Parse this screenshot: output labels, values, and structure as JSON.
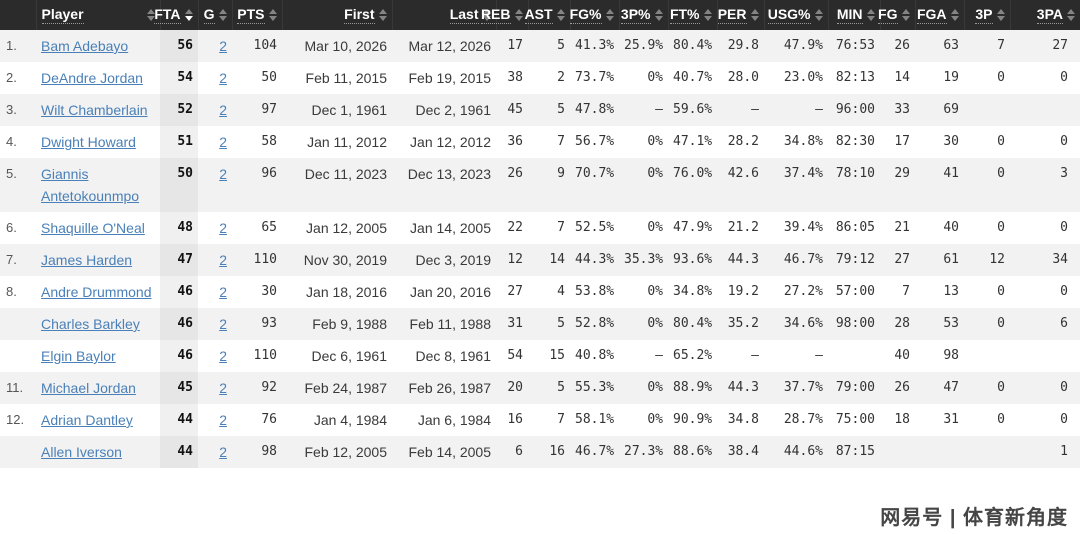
{
  "columns": [
    {
      "key": "rank",
      "label": "",
      "sortable": false
    },
    {
      "key": "player",
      "label": "Player",
      "sortable": true
    },
    {
      "key": "fta",
      "label": "FTA",
      "sortable": true,
      "sorted": "desc"
    },
    {
      "key": "g",
      "label": "G",
      "sortable": true
    },
    {
      "key": "pts",
      "label": "PTS",
      "sortable": true
    },
    {
      "key": "first",
      "label": "First",
      "sortable": true
    },
    {
      "key": "last",
      "label": "Last",
      "sortable": true
    },
    {
      "key": "reb",
      "label": "REB",
      "sortable": true
    },
    {
      "key": "ast",
      "label": "AST",
      "sortable": true
    },
    {
      "key": "fg_pct",
      "label": "FG%",
      "sortable": true
    },
    {
      "key": "p3_pct",
      "label": "3P%",
      "sortable": true
    },
    {
      "key": "ft_pct",
      "label": "FT%",
      "sortable": true
    },
    {
      "key": "per",
      "label": "PER",
      "sortable": true
    },
    {
      "key": "usg_pct",
      "label": "USG%",
      "sortable": true
    },
    {
      "key": "min",
      "label": "MIN",
      "sortable": true
    },
    {
      "key": "fg",
      "label": "FG",
      "sortable": true
    },
    {
      "key": "fga",
      "label": "FGA",
      "sortable": true
    },
    {
      "key": "p3",
      "label": "3P",
      "sortable": true
    },
    {
      "key": "p3a",
      "label": "3PA",
      "sortable": true
    }
  ],
  "rows": [
    {
      "rank": "1.",
      "player": "Bam Adebayo",
      "fta": "56",
      "g": "2",
      "pts": "104",
      "first": "Mar 10, 2026",
      "last": "Mar 12, 2026",
      "reb": "17",
      "ast": "5",
      "fg_pct": "41.3%",
      "p3_pct": "25.9%",
      "ft_pct": "80.4%",
      "per": "29.8",
      "usg_pct": "47.9%",
      "min": "76:53",
      "fg": "26",
      "fga": "63",
      "p3": "7",
      "p3a": "27"
    },
    {
      "rank": "2.",
      "player": "DeAndre Jordan",
      "fta": "54",
      "g": "2",
      "pts": "50",
      "first": "Feb 11, 2015",
      "last": "Feb 19, 2015",
      "reb": "38",
      "ast": "2",
      "fg_pct": "73.7%",
      "p3_pct": "0%",
      "ft_pct": "40.7%",
      "per": "28.0",
      "usg_pct": "23.0%",
      "min": "82:13",
      "fg": "14",
      "fga": "19",
      "p3": "0",
      "p3a": "0"
    },
    {
      "rank": "3.",
      "player": "Wilt Chamberlain",
      "fta": "52",
      "g": "2",
      "pts": "97",
      "first": "Dec 1, 1961",
      "last": "Dec 2, 1961",
      "reb": "45",
      "ast": "5",
      "fg_pct": "47.8%",
      "p3_pct": "–",
      "ft_pct": "59.6%",
      "per": "–",
      "usg_pct": "–",
      "min": "96:00",
      "fg": "33",
      "fga": "69",
      "p3": "",
      "p3a": ""
    },
    {
      "rank": "4.",
      "player": "Dwight Howard",
      "fta": "51",
      "g": "2",
      "pts": "58",
      "first": "Jan 11, 2012",
      "last": "Jan 12, 2012",
      "reb": "36",
      "ast": "7",
      "fg_pct": "56.7%",
      "p3_pct": "0%",
      "ft_pct": "47.1%",
      "per": "28.2",
      "usg_pct": "34.8%",
      "min": "82:30",
      "fg": "17",
      "fga": "30",
      "p3": "0",
      "p3a": "0"
    },
    {
      "rank": "5.",
      "player": "Giannis Antetokounmpo",
      "fta": "50",
      "g": "2",
      "pts": "96",
      "first": "Dec 11, 2023",
      "last": "Dec 13, 2023",
      "reb": "26",
      "ast": "9",
      "fg_pct": "70.7%",
      "p3_pct": "0%",
      "ft_pct": "76.0%",
      "per": "42.6",
      "usg_pct": "37.4%",
      "min": "78:10",
      "fg": "29",
      "fga": "41",
      "p3": "0",
      "p3a": "3"
    },
    {
      "rank": "6.",
      "player": "Shaquille O'Neal",
      "fta": "48",
      "g": "2",
      "pts": "65",
      "first": "Jan 12, 2005",
      "last": "Jan 14, 2005",
      "reb": "22",
      "ast": "7",
      "fg_pct": "52.5%",
      "p3_pct": "0%",
      "ft_pct": "47.9%",
      "per": "21.2",
      "usg_pct": "39.4%",
      "min": "86:05",
      "fg": "21",
      "fga": "40",
      "p3": "0",
      "p3a": "0"
    },
    {
      "rank": "7.",
      "player": "James Harden",
      "fta": "47",
      "g": "2",
      "pts": "110",
      "first": "Nov 30, 2019",
      "last": "Dec 3, 2019",
      "reb": "12",
      "ast": "14",
      "fg_pct": "44.3%",
      "p3_pct": "35.3%",
      "ft_pct": "93.6%",
      "per": "44.3",
      "usg_pct": "46.7%",
      "min": "79:12",
      "fg": "27",
      "fga": "61",
      "p3": "12",
      "p3a": "34"
    },
    {
      "rank": "8.",
      "player": "Andre Drummond",
      "fta": "46",
      "g": "2",
      "pts": "30",
      "first": "Jan 18, 2016",
      "last": "Jan 20, 2016",
      "reb": "27",
      "ast": "4",
      "fg_pct": "53.8%",
      "p3_pct": "0%",
      "ft_pct": "34.8%",
      "per": "19.2",
      "usg_pct": "27.2%",
      "min": "57:00",
      "fg": "7",
      "fga": "13",
      "p3": "0",
      "p3a": "0"
    },
    {
      "rank": "",
      "player": "Charles Barkley",
      "fta": "46",
      "g": "2",
      "pts": "93",
      "first": "Feb 9, 1988",
      "last": "Feb 11, 1988",
      "reb": "31",
      "ast": "5",
      "fg_pct": "52.8%",
      "p3_pct": "0%",
      "ft_pct": "80.4%",
      "per": "35.2",
      "usg_pct": "34.6%",
      "min": "98:00",
      "fg": "28",
      "fga": "53",
      "p3": "0",
      "p3a": "6"
    },
    {
      "rank": "",
      "player": "Elgin Baylor",
      "fta": "46",
      "g": "2",
      "pts": "110",
      "first": "Dec 6, 1961",
      "last": "Dec 8, 1961",
      "reb": "54",
      "ast": "15",
      "fg_pct": "40.8%",
      "p3_pct": "–",
      "ft_pct": "65.2%",
      "per": "–",
      "usg_pct": "–",
      "min": "",
      "fg": "40",
      "fga": "98",
      "p3": "",
      "p3a": ""
    },
    {
      "rank": "11.",
      "player": "Michael Jordan",
      "fta": "45",
      "g": "2",
      "pts": "92",
      "first": "Feb 24, 1987",
      "last": "Feb 26, 1987",
      "reb": "20",
      "ast": "5",
      "fg_pct": "55.3%",
      "p3_pct": "0%",
      "ft_pct": "88.9%",
      "per": "44.3",
      "usg_pct": "37.7%",
      "min": "79:00",
      "fg": "26",
      "fga": "47",
      "p3": "0",
      "p3a": "0"
    },
    {
      "rank": "12.",
      "player": "Adrian Dantley",
      "fta": "44",
      "g": "2",
      "pts": "76",
      "first": "Jan 4, 1984",
      "last": "Jan 6, 1984",
      "reb": "16",
      "ast": "7",
      "fg_pct": "58.1%",
      "p3_pct": "0%",
      "ft_pct": "90.9%",
      "per": "34.8",
      "usg_pct": "28.7%",
      "min": "75:00",
      "fg": "18",
      "fga": "31",
      "p3": "0",
      "p3a": "0"
    },
    {
      "rank": "",
      "player": "Allen Iverson",
      "fta": "44",
      "g": "2",
      "pts": "98",
      "first": "Feb 12, 2005",
      "last": "Feb 14, 2005",
      "reb": "6",
      "ast": "16",
      "fg_pct": "46.7%",
      "p3_pct": "27.3%",
      "ft_pct": "88.6%",
      "per": "38.4",
      "usg_pct": "44.6%",
      "min": "87:15",
      "fg": "",
      "fga": "",
      "p3": "",
      "p3a": "1"
    }
  ],
  "watermark": "网易号 | 体育新角度",
  "colors": {
    "header_bg": "#2b2b2b",
    "header_text": "#ffffff",
    "row_odd_bg": "#f2f2f2",
    "row_even_bg": "#ffffff",
    "sorted_col_odd_bg": "#e6e6e6",
    "sorted_col_even_bg": "#f0f0f0",
    "link": "#4a80b8",
    "active_sort_arrow": "#ffffff",
    "inactive_sort_arrow": "#848484"
  }
}
